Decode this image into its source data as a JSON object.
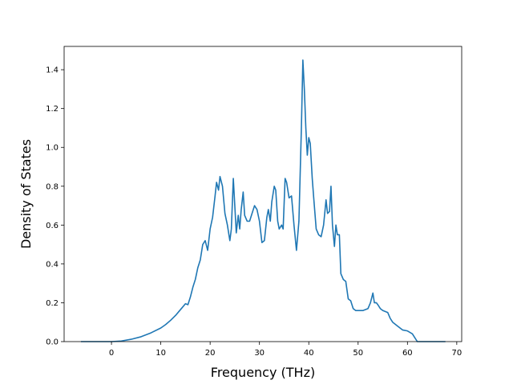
{
  "chart_data": {
    "type": "line",
    "title": "",
    "xlabel": "Frequency (THz)",
    "ylabel": "Density of States",
    "xlim": [
      -9.6,
      71.0
    ],
    "ylim": [
      0.0,
      1.52
    ],
    "xticks": [
      0,
      10,
      20,
      30,
      40,
      50,
      60,
      70
    ],
    "yticks": [
      0.0,
      0.2,
      0.4,
      0.6,
      0.8,
      1.0,
      1.2,
      1.4
    ],
    "ytick_labels": [
      "0.0",
      "0.2",
      "0.4",
      "0.6",
      "0.8",
      "1.0",
      "1.2",
      "1.4"
    ],
    "grid": false,
    "legend": "none",
    "colors": {
      "line": "#1f77b4"
    },
    "series": [
      {
        "x": [
          -6.2,
          -3,
          0,
          2,
          4,
          6,
          8,
          10,
          11,
          12,
          13,
          14,
          15,
          15.5,
          16,
          16.5,
          17,
          17.5,
          18,
          18.5,
          19,
          19.5,
          20,
          20.5,
          21,
          21.3,
          21.7,
          22,
          22.5,
          23,
          23.5,
          24,
          24.3,
          24.7,
          25,
          25.3,
          25.7,
          26,
          26.3,
          26.7,
          27,
          27.5,
          28,
          28.5,
          29,
          29.5,
          30,
          30.5,
          31,
          31.5,
          31.8,
          32.2,
          32.5,
          33,
          33.3,
          33.7,
          34,
          34.5,
          34.8,
          35.2,
          35.5,
          36,
          36.5,
          37,
          37.5,
          38,
          38.5,
          38.8,
          39.1,
          39.4,
          39.7,
          40,
          40.3,
          40.7,
          41,
          41.5,
          42,
          42.5,
          43,
          43.5,
          43.8,
          44.2,
          44.5,
          44.8,
          45.2,
          45.5,
          45.8,
          46.2,
          46.5,
          47,
          47.5,
          48,
          48.5,
          49,
          49.5,
          50,
          51,
          52,
          52.5,
          53,
          53.3,
          53.7,
          54,
          54.5,
          55,
          56,
          56.5,
          57,
          58,
          59,
          60,
          61,
          61.5,
          62,
          65,
          67.7
        ],
        "y": [
          0.0,
          0.0,
          0.0,
          0.003,
          0.012,
          0.025,
          0.045,
          0.07,
          0.088,
          0.11,
          0.135,
          0.165,
          0.195,
          0.19,
          0.23,
          0.28,
          0.32,
          0.38,
          0.42,
          0.5,
          0.52,
          0.47,
          0.58,
          0.64,
          0.75,
          0.82,
          0.78,
          0.85,
          0.8,
          0.66,
          0.6,
          0.52,
          0.58,
          0.84,
          0.7,
          0.56,
          0.65,
          0.58,
          0.68,
          0.77,
          0.65,
          0.62,
          0.62,
          0.66,
          0.7,
          0.68,
          0.62,
          0.51,
          0.52,
          0.64,
          0.68,
          0.62,
          0.72,
          0.8,
          0.78,
          0.62,
          0.58,
          0.6,
          0.58,
          0.84,
          0.82,
          0.74,
          0.75,
          0.6,
          0.47,
          0.62,
          1.1,
          1.45,
          1.3,
          1.1,
          0.96,
          1.05,
          1.02,
          0.84,
          0.74,
          0.58,
          0.55,
          0.54,
          0.6,
          0.73,
          0.66,
          0.67,
          0.8,
          0.6,
          0.49,
          0.6,
          0.55,
          0.55,
          0.35,
          0.32,
          0.31,
          0.22,
          0.21,
          0.17,
          0.16,
          0.16,
          0.16,
          0.17,
          0.2,
          0.25,
          0.2,
          0.2,
          0.19,
          0.17,
          0.16,
          0.15,
          0.12,
          0.1,
          0.08,
          0.06,
          0.055,
          0.04,
          0.02,
          0.0,
          0.0,
          0.0
        ]
      }
    ]
  }
}
